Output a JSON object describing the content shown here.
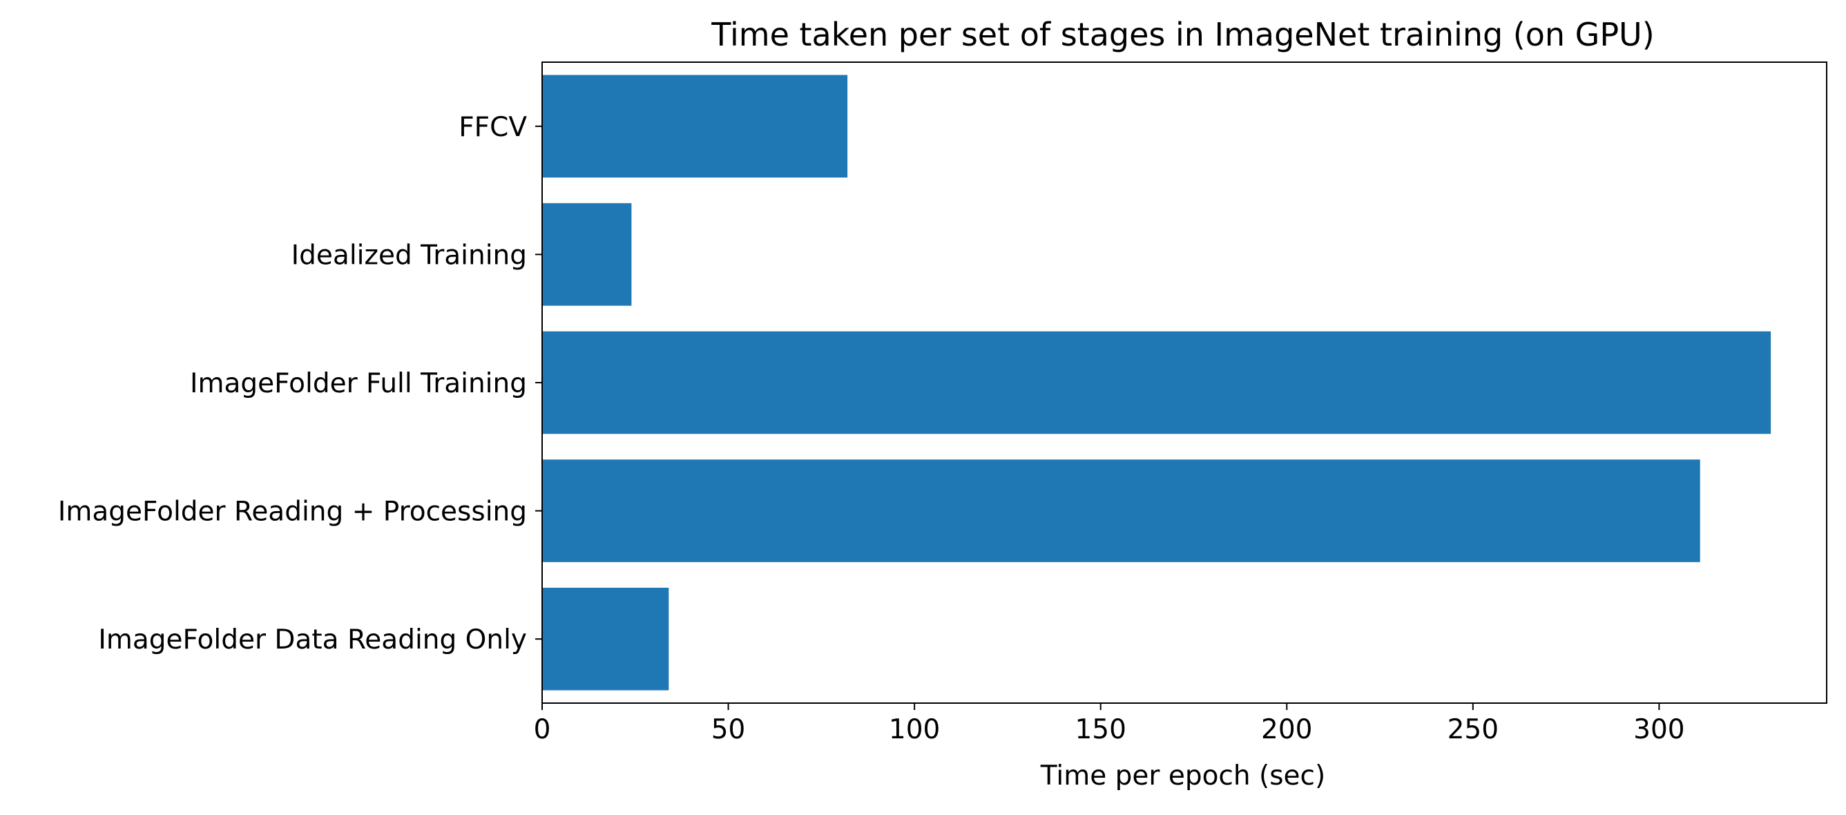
{
  "chart_data": {
    "type": "bar",
    "orientation": "horizontal",
    "title": "Time taken per set of stages in ImageNet training (on GPU)",
    "xlabel": "Time per epoch (sec)",
    "ylabel": "",
    "categories": [
      "FFCV",
      "Idealized Training",
      "ImageFolder Full Training",
      "ImageFolder Reading + Processing",
      "ImageFolder Data Reading Only"
    ],
    "values": [
      82,
      24,
      330,
      311,
      34
    ],
    "xlim": [
      0,
      345
    ],
    "xticks": [
      0,
      50,
      100,
      150,
      200,
      250,
      300
    ],
    "grid": false,
    "legend": "none",
    "bar_color": "#1f77b4"
  }
}
